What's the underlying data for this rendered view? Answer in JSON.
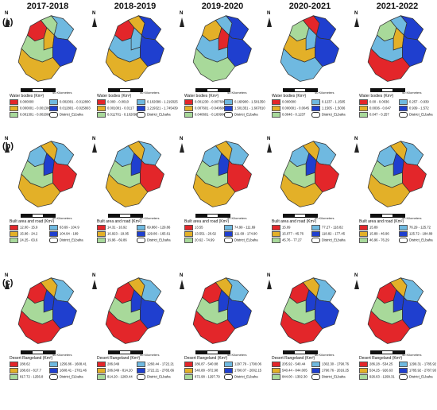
{
  "years": [
    "2017-2018",
    "2018-2019",
    "2019-2020",
    "2020-2021",
    "2021-2022"
  ],
  "colors": {
    "c1": "#e3262a",
    "c2": "#e3b028",
    "c3": "#a8d99a",
    "c4": "#6fb9e0",
    "c5": "#1f3fcf"
  },
  "rows": [
    {
      "label": "(a)",
      "legend_title": "Water bodies (Km²)",
      "scale_label": "40 Kilometers",
      "district": "District_ELbaha",
      "panels": [
        {
          "classes": [
            "0.000000",
            "0.000001 - 0.001300",
            "0.001301 - 0.002000",
            "0.002001 - 0.012800",
            "0.012801 - 0.025803"
          ],
          "colors": [
            "c1",
            "c2",
            "c3",
            "c4",
            "c5"
          ],
          "regions": [
            "c1",
            "c3",
            "c2",
            "c4",
            "c5",
            "c3",
            "c2"
          ]
        },
        {
          "classes": [
            "0.000 - 0.0010",
            "0.001001 - 0.0117",
            "0.011701 - 0.102099",
            "0.102099 - 1.219325",
            "1.219321 - 1.745439"
          ],
          "colors": [
            "c1",
            "c2",
            "c3",
            "c4",
            "c5"
          ],
          "regions": [
            "c1",
            "c2",
            "c4",
            "c5",
            "c5",
            "c4",
            "c2"
          ]
        },
        {
          "classes": [
            "0.001230 - 0.007600",
            "0.007601 - 0.040600",
            "0.040601 - 0.160900",
            "0.160900 - 1.501350",
            "1.501351 - 1.667810"
          ],
          "colors": [
            "c1",
            "c2",
            "c3",
            "c4",
            "c5"
          ],
          "regions": [
            "c2",
            "c4",
            "c1",
            "c5",
            "c5",
            "c4",
            "c3"
          ]
        },
        {
          "classes": [
            "0.000000",
            "0.000001 - 0.0045",
            "0.0046 - 0.1237",
            "0.1237 - 1.1505",
            "1.1505 - 1.5036"
          ],
          "colors": [
            "c1",
            "c2",
            "c3",
            "c4",
            "c5"
          ],
          "regions": [
            "c3",
            "c1",
            "c4",
            "c5",
            "c5",
            "c2",
            "c4"
          ]
        },
        {
          "classes": [
            "0.00 - 0.0036",
            "0.0036 - 0.047",
            "0.047 - 0.257",
            "0.257 - 0.939",
            "0.939 - 1.572"
          ],
          "colors": [
            "c1",
            "c2",
            "c3",
            "c4",
            "c5"
          ],
          "regions": [
            "c3",
            "c4",
            "c2",
            "c5",
            "c5",
            "c4",
            "c1"
          ]
        }
      ]
    },
    {
      "label": "(b)",
      "legend_title": "Built area  and road (Km²)",
      "scale_label": "40 Kilometers",
      "district": "District_ELbaha",
      "panels": [
        {
          "classes": [
            "12.00 - 15.9",
            "15.96 - 24.2",
            "24.25 - 63.6",
            "63.69 - 104.9",
            "104.94 - 199"
          ],
          "colors": [
            "c1",
            "c2",
            "c3",
            "c4",
            "c5"
          ],
          "regions": [
            "c4",
            "c2",
            "c5",
            "c4",
            "c1",
            "c3",
            "c2"
          ]
        },
        {
          "classes": [
            "14.31 - 16.92",
            "16.923 - 19.95",
            "19.96 - 69.86",
            "69.860 - 129.86",
            "129.86 - 165.61"
          ],
          "colors": [
            "c1",
            "c2",
            "c3",
            "c4",
            "c5"
          ],
          "regions": [
            "c4",
            "c2",
            "c5",
            "c4",
            "c1",
            "c3",
            "c2"
          ]
        },
        {
          "classes": [
            "13.55",
            "13.551 - 20.62",
            "20.62 - 74.99",
            "74.99 - 111.69",
            "111.69 - 174.90"
          ],
          "colors": [
            "c1",
            "c2",
            "c3",
            "c4",
            "c5"
          ],
          "regions": [
            "c4",
            "c2",
            "c5",
            "c4",
            "c1",
            "c3",
            "c2"
          ]
        },
        {
          "classes": [
            "15.09",
            "15.077 - 45.76",
            "45.76 - 77.27",
            "77.27 - 118.82",
            "118.82 - 177.45"
          ],
          "colors": [
            "c1",
            "c2",
            "c3",
            "c4",
            "c5"
          ],
          "regions": [
            "c4",
            "c2",
            "c5",
            "c4",
            "c1",
            "c3",
            "c2"
          ]
        },
        {
          "classes": [
            "15.89",
            "15.89 - 46.96",
            "46.96 - 76.29",
            "76.29 - 125.72",
            "125.72 - 184.89"
          ],
          "colors": [
            "c1",
            "c2",
            "c3",
            "c4",
            "c5"
          ],
          "regions": [
            "c4",
            "c2",
            "c5",
            "c4",
            "c1",
            "c3",
            "c2"
          ]
        }
      ]
    },
    {
      "label": "(c)",
      "legend_title": "Desert Rangeland (Km²)",
      "scale_label": "40 Kilometers",
      "district": "District_ELbaha",
      "panels": [
        {
          "classes": [
            "288.62",
            "288.63 - 817.7",
            "817.72 - 1256.8",
            "1256.86 - 1608.41",
            "1608.41 - 2781.46"
          ],
          "colors": [
            "c1",
            "c2",
            "c3",
            "c4",
            "c5"
          ],
          "regions": [
            "c1",
            "c2",
            "c5",
            "c4",
            "c5",
            "c3",
            "c1"
          ]
        },
        {
          "classes": [
            "286.049",
            "286.049 - 814.20",
            "814.20 - 1260.44",
            "1260.44 - 1722.21",
            "1722.21 - 2765.66"
          ],
          "colors": [
            "c1",
            "c2",
            "c3",
            "c4",
            "c5"
          ],
          "regions": [
            "c1",
            "c2",
            "c5",
            "c4",
            "c5",
            "c3",
            "c1"
          ]
        },
        {
          "classes": [
            "286.87 - 540.88",
            "540.88 - 872.98",
            "872.98 - 1297.79",
            "1297.79 - 1790.06",
            "1790.07 - 2002.15"
          ],
          "colors": [
            "c1",
            "c2",
            "c3",
            "c4",
            "c5"
          ],
          "regions": [
            "c1",
            "c2",
            "c5",
            "c4",
            "c5",
            "c3",
            "c1"
          ]
        },
        {
          "classes": [
            "205.92 - 540.44",
            "540.44 - 844.005",
            "844.00 - 1302.30",
            "1302.30 - 1790.76",
            "1790.76 - 2016.25"
          ],
          "colors": [
            "c1",
            "c2",
            "c3",
            "c4",
            "c5"
          ],
          "regions": [
            "c1",
            "c2",
            "c5",
            "c4",
            "c5",
            "c3",
            "c1"
          ]
        },
        {
          "classes": [
            "286.28 - 534.25",
            "534.25 - 926.63",
            "926.63 - 1299.31",
            "1299.31 - 1785.92",
            "1785.92 - 2787.93"
          ],
          "colors": [
            "c1",
            "c2",
            "c3",
            "c4",
            "c5"
          ],
          "regions": [
            "c1",
            "c2",
            "c5",
            "c4",
            "c5",
            "c3",
            "c1"
          ]
        }
      ]
    }
  ]
}
